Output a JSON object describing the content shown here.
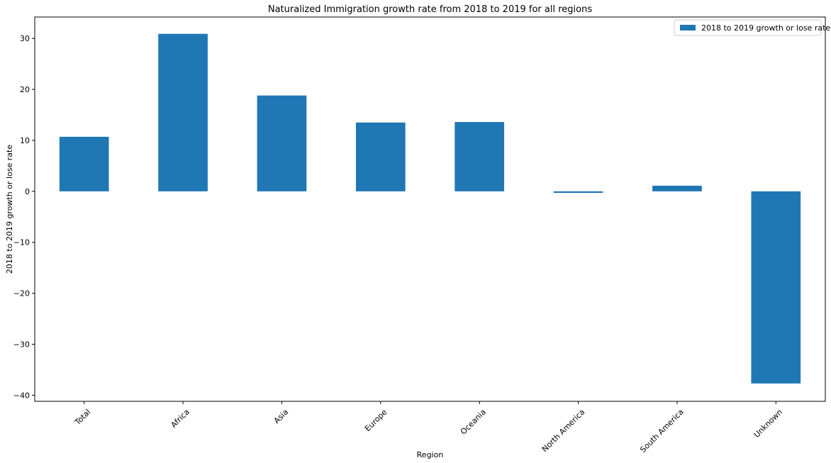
{
  "chart_data": {
    "type": "bar",
    "title": "Naturalized Immigration growth rate from 2018 to 2019 for all regions",
    "xlabel": "Region",
    "ylabel": "2018 to 2019 growth or lose rate",
    "categories": [
      "Total",
      "Africa",
      "Asia",
      "Europe",
      "Oceania",
      "North America",
      "South America",
      "Unknown"
    ],
    "series": [
      {
        "name": "2018 to 2019 growth or lose rate",
        "values": [
          10.7,
          30.9,
          18.8,
          13.5,
          13.6,
          -0.3,
          1.1,
          -37.7
        ],
        "color": "#1f77b4"
      }
    ],
    "ylim": [
      -41.2,
      34.2
    ],
    "yticks": [
      -40,
      -30,
      -20,
      -10,
      0,
      10,
      20,
      30
    ],
    "yticklabels": [
      "−40",
      "−30",
      "−20",
      "−10",
      "0",
      "10",
      "20",
      "30"
    ],
    "legend_position": "top-right",
    "grid": false
  }
}
